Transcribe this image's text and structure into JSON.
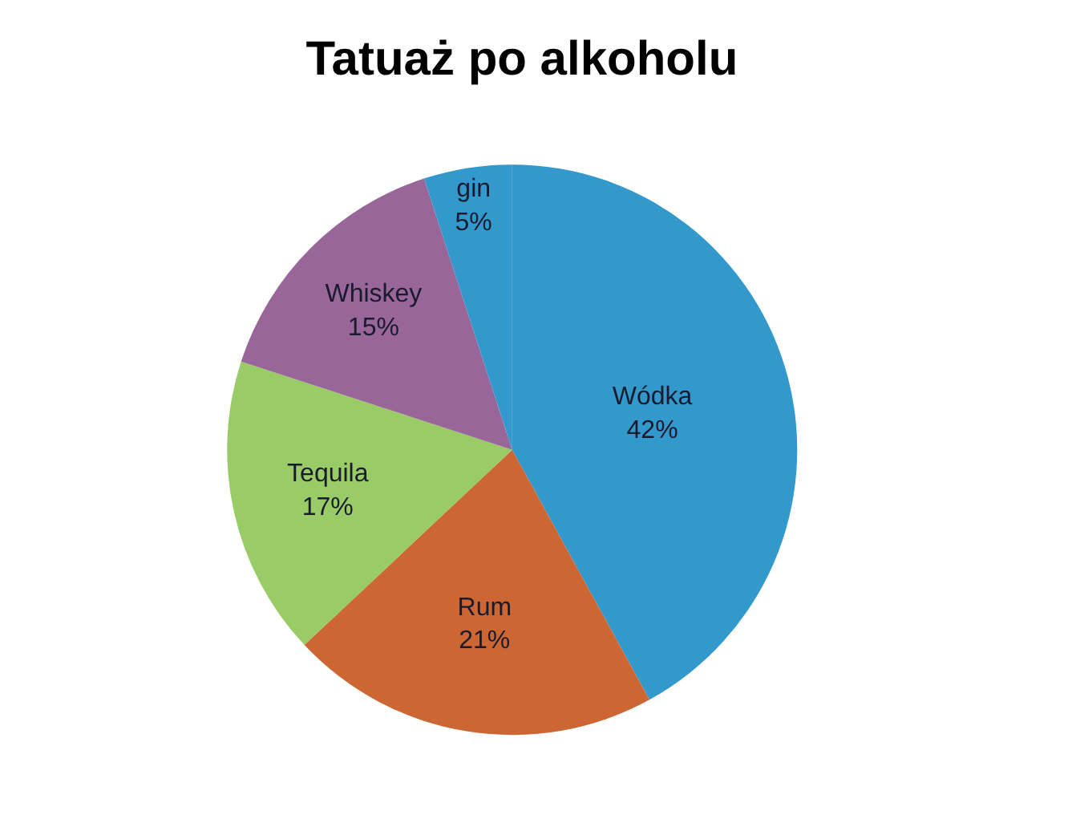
{
  "chart_data": {
    "type": "pie",
    "title": "Tatuaż po alkoholu",
    "categories": [
      "Wódka",
      "Rum",
      "Tequila",
      "Whiskey",
      "gin"
    ],
    "values": [
      42,
      21,
      17,
      15,
      5
    ],
    "value_labels": [
      "42%",
      "21%",
      "17%",
      "15%",
      "5%"
    ],
    "colors": [
      "#3399cc",
      "#cc6633",
      "#99cc66",
      "#996699",
      "#3399cc"
    ],
    "legend": false
  }
}
